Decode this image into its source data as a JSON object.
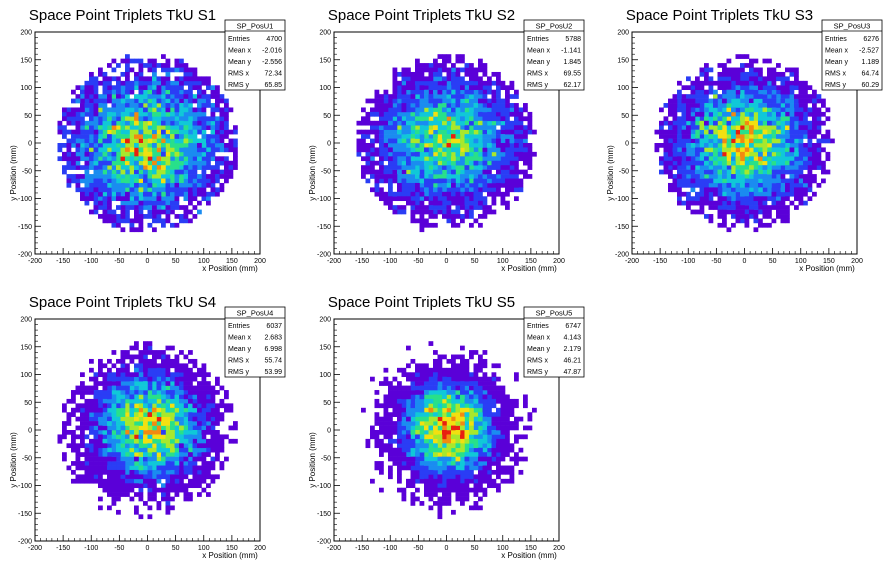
{
  "chart_data": [
    {
      "type": "heatmap",
      "title": "Space Point Triplets TkU S1",
      "xlabel": "x Position (mm)",
      "ylabel": "y Position (mm)",
      "xlim": [
        -200,
        200
      ],
      "ylim": [
        -200,
        200
      ],
      "xticks": [
        "-200",
        "-150",
        "-100",
        "-50",
        "0",
        "50",
        "100",
        "150",
        "200"
      ],
      "yticks": [
        "-200",
        "-150",
        "-100",
        "-50",
        "0",
        "50",
        "100",
        "150",
        "200"
      ],
      "stats": {
        "name": "SP_PosU1",
        "rows": [
          {
            "label": "Entries",
            "value": "4700"
          },
          {
            "label": "Mean x",
            "value": "-2.016"
          },
          {
            "label": "Mean y",
            "value": "-2.556"
          },
          {
            "label": "RMS x",
            "value": "72.34"
          },
          {
            "label": "RMS y",
            "value": "65.85"
          }
        ]
      },
      "distribution": {
        "entries": 4700,
        "mean_x": -2.016,
        "mean_y": -2.556,
        "rms_x": 72.34,
        "rms_y": 65.85,
        "radius": 160
      }
    },
    {
      "type": "heatmap",
      "title": "Space Point Triplets TkU S2",
      "xlabel": "x Position (mm)",
      "ylabel": "y Position (mm)",
      "xlim": [
        -200,
        200
      ],
      "ylim": [
        -200,
        200
      ],
      "xticks": [
        "-200",
        "-150",
        "-100",
        "-50",
        "0",
        "50",
        "100",
        "150",
        "200"
      ],
      "yticks": [
        "-200",
        "-150",
        "-100",
        "-50",
        "0",
        "50",
        "100",
        "150",
        "200"
      ],
      "stats": {
        "name": "SP_PosU2",
        "rows": [
          {
            "label": "Entries",
            "value": "5788"
          },
          {
            "label": "Mean x",
            "value": "-1.141"
          },
          {
            "label": "Mean y",
            "value": "1.845"
          },
          {
            "label": "RMS x",
            "value": "69.55"
          },
          {
            "label": "RMS y",
            "value": "62.17"
          }
        ]
      },
      "distribution": {
        "entries": 5788,
        "mean_x": -1.141,
        "mean_y": 1.845,
        "rms_x": 69.55,
        "rms_y": 62.17,
        "radius": 158
      }
    },
    {
      "type": "heatmap",
      "title": "Space Point Triplets TkU S3",
      "xlabel": "x Position (mm)",
      "ylabel": "y Position (mm)",
      "xlim": [
        -200,
        200
      ],
      "ylim": [
        -200,
        200
      ],
      "xticks": [
        "-200",
        "-150",
        "-100",
        "-50",
        "0",
        "50",
        "100",
        "150",
        "200"
      ],
      "yticks": [
        "-200",
        "-150",
        "-100",
        "-50",
        "0",
        "50",
        "100",
        "150",
        "200"
      ],
      "stats": {
        "name": "SP_PosU3",
        "rows": [
          {
            "label": "Entries",
            "value": "6276"
          },
          {
            "label": "Mean x",
            "value": "-2.527"
          },
          {
            "label": "Mean y",
            "value": "1.189"
          },
          {
            "label": "RMS x",
            "value": "64.74"
          },
          {
            "label": "RMS y",
            "value": "60.29"
          }
        ]
      },
      "distribution": {
        "entries": 6276,
        "mean_x": -2.527,
        "mean_y": 1.189,
        "rms_x": 64.74,
        "rms_y": 60.29,
        "radius": 158
      }
    },
    {
      "type": "heatmap",
      "title": "Space Point Triplets TkU S4",
      "xlabel": "x Position (mm)",
      "ylabel": "y Position (mm)",
      "xlim": [
        -200,
        200
      ],
      "ylim": [
        -200,
        200
      ],
      "xticks": [
        "-200",
        "-150",
        "-100",
        "-50",
        "0",
        "50",
        "100",
        "150",
        "200"
      ],
      "yticks": [
        "-200",
        "-150",
        "-100",
        "-50",
        "0",
        "50",
        "100",
        "150",
        "200"
      ],
      "stats": {
        "name": "SP_PosU4",
        "rows": [
          {
            "label": "Entries",
            "value": "6037"
          },
          {
            "label": "Mean x",
            "value": "2.683"
          },
          {
            "label": "Mean y",
            "value": "6.998"
          },
          {
            "label": "RMS x",
            "value": "55.74"
          },
          {
            "label": "RMS y",
            "value": "53.99"
          }
        ]
      },
      "distribution": {
        "entries": 6037,
        "mean_x": 2.683,
        "mean_y": 6.998,
        "rms_x": 55.74,
        "rms_y": 53.99,
        "radius": 160
      }
    },
    {
      "type": "heatmap",
      "title": "Space Point Triplets TkU S5",
      "xlabel": "x Position (mm)",
      "ylabel": "y Position (mm)",
      "xlim": [
        -200,
        200
      ],
      "ylim": [
        -200,
        200
      ],
      "xticks": [
        "-200",
        "-150",
        "-100",
        "-50",
        "0",
        "50",
        "100",
        "150",
        "200"
      ],
      "yticks": [
        "-200",
        "-150",
        "-100",
        "-50",
        "0",
        "50",
        "100",
        "150",
        "200"
      ],
      "stats": {
        "name": "SP_PosU5",
        "rows": [
          {
            "label": "Entries",
            "value": "6747"
          },
          {
            "label": "Mean x",
            "value": "4.143"
          },
          {
            "label": "Mean y",
            "value": "2.179"
          },
          {
            "label": "RMS x",
            "value": "46.21"
          },
          {
            "label": "RMS y",
            "value": "47.87"
          }
        ]
      },
      "distribution": {
        "entries": 6747,
        "mean_x": 4.143,
        "mean_y": 2.179,
        "rms_x": 46.21,
        "rms_y": 47.87,
        "radius": 160
      }
    }
  ],
  "colors": {
    "palette": [
      "#5a00d8",
      "#2a3df5",
      "#1a8cf0",
      "#10c8d8",
      "#28e08a",
      "#a8e82c",
      "#f2e010",
      "#f28a10",
      "#e82010"
    ],
    "frame": "#000000",
    "background": "#ffffff"
  }
}
